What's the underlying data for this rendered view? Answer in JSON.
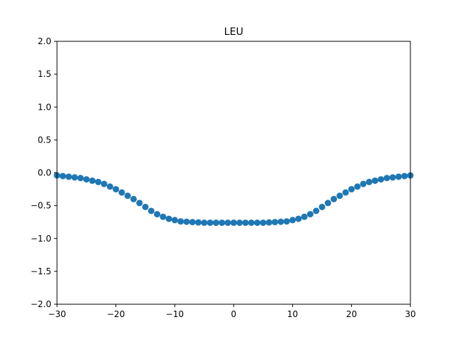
{
  "chart_data": {
    "type": "scatter",
    "title": "LEU",
    "xlabel": "",
    "ylabel": "",
    "xlim": [
      -30,
      30
    ],
    "ylim": [
      -2.0,
      2.0
    ],
    "x_ticks": [
      "−30",
      "−20",
      "−10",
      "0",
      "10",
      "20",
      "30"
    ],
    "y_ticks": [
      "−2.0",
      "−1.5",
      "−1.0",
      "−0.5",
      "0.0",
      "0.5",
      "1.0",
      "1.5",
      "2.0"
    ],
    "grid": false,
    "marker_color": "#1f77b4",
    "series": [
      {
        "x": [
          -30,
          -29,
          -28,
          -27,
          -26,
          -25,
          -24,
          -23,
          -22,
          -21,
          -20,
          -19,
          -18,
          -17,
          -16,
          -15,
          -14,
          -13,
          -12,
          -11,
          -10,
          -9,
          -8,
          -7,
          -6,
          -5,
          -4,
          -3,
          -2,
          -1,
          0,
          1,
          2,
          3,
          4,
          5,
          6,
          7,
          8,
          9,
          10,
          11,
          12,
          13,
          14,
          15,
          16,
          17,
          18,
          19,
          20,
          21,
          22,
          23,
          24,
          25,
          26,
          27,
          28,
          29,
          30
        ],
        "y": [
          -0.04,
          -0.05,
          -0.06,
          -0.07,
          -0.08,
          -0.1,
          -0.12,
          -0.14,
          -0.17,
          -0.21,
          -0.25,
          -0.3,
          -0.35,
          -0.4,
          -0.46,
          -0.52,
          -0.58,
          -0.63,
          -0.67,
          -0.7,
          -0.72,
          -0.74,
          -0.745,
          -0.75,
          -0.755,
          -0.76,
          -0.76,
          -0.76,
          -0.76,
          -0.76,
          -0.76,
          -0.76,
          -0.76,
          -0.76,
          -0.76,
          -0.76,
          -0.755,
          -0.75,
          -0.745,
          -0.74,
          -0.72,
          -0.7,
          -0.67,
          -0.63,
          -0.58,
          -0.52,
          -0.46,
          -0.4,
          -0.35,
          -0.3,
          -0.25,
          -0.21,
          -0.17,
          -0.14,
          -0.12,
          -0.1,
          -0.08,
          -0.07,
          -0.06,
          -0.05,
          -0.04
        ]
      }
    ]
  }
}
